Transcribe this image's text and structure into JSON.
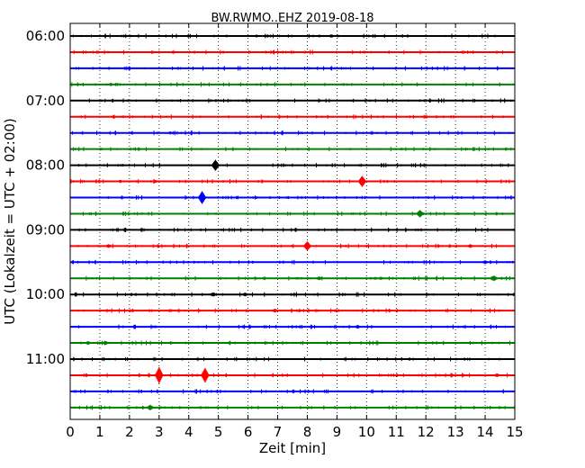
{
  "chart_data": {
    "type": "line",
    "title": "BW.RWMO..EHZ 2019-08-18",
    "xlabel": "Zeit  [min]",
    "ylabel": "UTC (Lokalzeit = UTC + 02:00)",
    "xlim": [
      0,
      15
    ],
    "x_ticks": [
      "0",
      "1",
      "2",
      "3",
      "4",
      "5",
      "6",
      "7",
      "8",
      "9",
      "10",
      "11",
      "12",
      "13",
      "14",
      "15"
    ],
    "y_ticks": [
      "06:00",
      "07:00",
      "08:00",
      "09:00",
      "10:00",
      "11:00"
    ],
    "grid": true,
    "colors": [
      "#000000",
      "#ff0000",
      "#0000ff",
      "#008000"
    ],
    "traces": [
      {
        "start": "06:00",
        "color": "#000000",
        "events": []
      },
      {
        "start": "06:15",
        "color": "#ff0000",
        "events": []
      },
      {
        "start": "06:30",
        "color": "#0000ff",
        "events": []
      },
      {
        "start": "06:45",
        "color": "#008000",
        "events": []
      },
      {
        "start": "07:00",
        "color": "#000000",
        "events": []
      },
      {
        "start": "07:15",
        "color": "#ff0000",
        "events": []
      },
      {
        "start": "07:30",
        "color": "#0000ff",
        "events": []
      },
      {
        "start": "07:45",
        "color": "#008000",
        "events": []
      },
      {
        "start": "08:00",
        "color": "#000000",
        "events": [
          [
            4.9,
            6
          ]
        ]
      },
      {
        "start": "08:15",
        "color": "#ff0000",
        "events": [
          [
            9.85,
            6
          ]
        ]
      },
      {
        "start": "08:30",
        "color": "#0000ff",
        "events": [
          [
            4.45,
            7
          ]
        ]
      },
      {
        "start": "08:45",
        "color": "#008000",
        "events": [
          [
            11.8,
            4
          ]
        ]
      },
      {
        "start": "09:00",
        "color": "#000000",
        "events": []
      },
      {
        "start": "09:15",
        "color": "#ff0000",
        "events": [
          [
            8.0,
            5
          ],
          [
            1.3,
            2
          ],
          [
            13.5,
            2
          ]
        ]
      },
      {
        "start": "09:30",
        "color": "#0000ff",
        "events": [
          [
            14.0,
            2
          ]
        ]
      },
      {
        "start": "09:45",
        "color": "#008000",
        "events": [
          [
            14.3,
            3
          ],
          [
            8.4,
            2
          ]
        ]
      },
      {
        "start": "10:00",
        "color": "#000000",
        "events": [
          [
            5.9,
            2
          ],
          [
            4.8,
            2
          ]
        ]
      },
      {
        "start": "10:15",
        "color": "#ff0000",
        "events": [
          [
            6.9,
            2
          ]
        ]
      },
      {
        "start": "10:30",
        "color": "#0000ff",
        "events": [
          [
            9.7,
            2
          ]
        ]
      },
      {
        "start": "10:45",
        "color": "#008000",
        "events": [
          [
            1.2,
            2
          ],
          [
            0.6,
            2
          ]
        ]
      },
      {
        "start": "11:00",
        "color": "#000000",
        "events": []
      },
      {
        "start": "11:15",
        "color": "#ff0000",
        "events": [
          [
            3.0,
            9
          ],
          [
            4.55,
            8
          ],
          [
            14.4,
            2
          ]
        ]
      },
      {
        "start": "11:30",
        "color": "#0000ff",
        "events": []
      },
      {
        "start": "11:45",
        "color": "#008000",
        "events": [
          [
            2.7,
            3
          ]
        ]
      }
    ]
  }
}
